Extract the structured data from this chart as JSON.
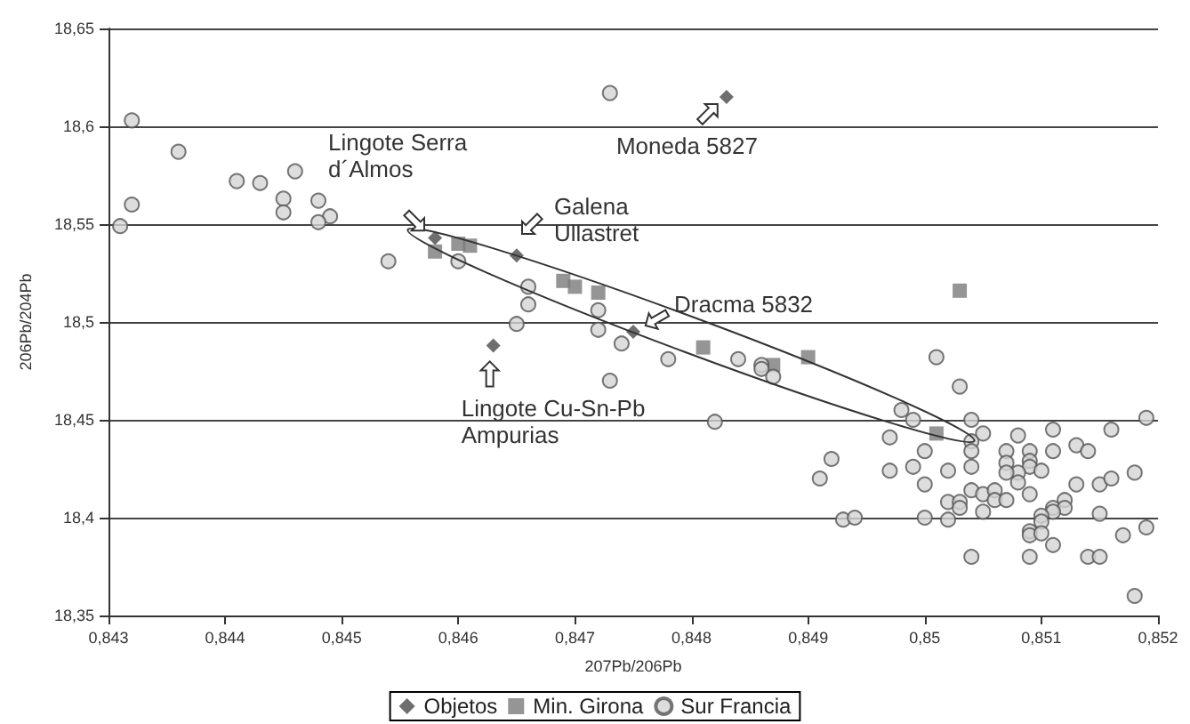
{
  "chart_data": {
    "type": "scatter",
    "xlabel": "207Pb/206Pb",
    "ylabel": "206Pb/204Pb",
    "xlim": [
      0.843,
      0.852
    ],
    "ylim": [
      18.35,
      18.65
    ],
    "xticks": [
      {
        "value": 0.843,
        "label": "0,843"
      },
      {
        "value": 0.844,
        "label": "0,844"
      },
      {
        "value": 0.845,
        "label": "0,845"
      },
      {
        "value": 0.846,
        "label": "0,846"
      },
      {
        "value": 0.847,
        "label": "0,847"
      },
      {
        "value": 0.848,
        "label": "0,848"
      },
      {
        "value": 0.849,
        "label": "0,849"
      },
      {
        "value": 0.85,
        "label": "0,85"
      },
      {
        "value": 0.851,
        "label": "0,851"
      },
      {
        "value": 0.852,
        "label": "0,852"
      }
    ],
    "yticks": [
      {
        "value": 18.35,
        "label": "18,35"
      },
      {
        "value": 18.4,
        "label": "18,4"
      },
      {
        "value": 18.45,
        "label": "18,45"
      },
      {
        "value": 18.5,
        "label": "18,5"
      },
      {
        "value": 18.55,
        "label": "18,55"
      },
      {
        "value": 18.6,
        "label": "18,6"
      },
      {
        "value": 18.65,
        "label": "18,65"
      }
    ],
    "grid": "y",
    "legend": "bottom",
    "series": [
      {
        "name": "Objetos",
        "color": "#4a4a4a",
        "marker": "diamond",
        "x": [
          0.8483,
          0.8458,
          0.8465,
          0.8475,
          0.8463
        ],
        "values": [
          18.615,
          18.543,
          18.534,
          18.495,
          18.488
        ]
      },
      {
        "name": "Min. Girona",
        "color": "#7a7a7a",
        "marker": "square",
        "x": [
          0.8458,
          0.846,
          0.8461,
          0.8469,
          0.847,
          0.8472,
          0.8481,
          0.8487,
          0.849,
          0.8503,
          0.8501
        ],
        "values": [
          18.536,
          18.54,
          18.539,
          18.521,
          18.518,
          18.515,
          18.487,
          18.478,
          18.482,
          18.516,
          18.443
        ]
      },
      {
        "name": "Sur Francia",
        "color": "#d4d4d4",
        "marker": "circle",
        "x": [
          0.8432,
          0.8436,
          0.8432,
          0.8431,
          0.8441,
          0.8443,
          0.8446,
          0.8445,
          0.8445,
          0.8448,
          0.8449,
          0.8448,
          0.8454,
          0.8473,
          0.846,
          0.8466,
          0.8466,
          0.8465,
          0.8472,
          0.8472,
          0.8474,
          0.8478,
          0.8473,
          0.8484,
          0.8486,
          0.8486,
          0.8487,
          0.8482,
          0.8501,
          0.8503,
          0.8498,
          0.8499,
          0.8504,
          0.8519,
          0.8505,
          0.8504,
          0.8497,
          0.85,
          0.8504,
          0.8508,
          0.8511,
          0.8516,
          0.8507,
          0.8511,
          0.8513,
          0.8514,
          0.8509,
          0.8507,
          0.8509,
          0.8509,
          0.851,
          0.8508,
          0.8507,
          0.8504,
          0.8502,
          0.8499,
          0.8497,
          0.8492,
          0.8491,
          0.85,
          0.8504,
          0.8505,
          0.8506,
          0.8506,
          0.8507,
          0.8508,
          0.8509,
          0.8513,
          0.8515,
          0.8516,
          0.8518,
          0.8502,
          0.8503,
          0.8503,
          0.8505,
          0.8512,
          0.8511,
          0.8512,
          0.8511,
          0.8515,
          0.851,
          0.851,
          0.85,
          0.8502,
          0.8493,
          0.8494,
          0.8509,
          0.8509,
          0.851,
          0.8511,
          0.8517,
          0.8519,
          0.8504,
          0.8509,
          0.8514,
          0.8515,
          0.8518
        ],
        "values": [
          18.603,
          18.587,
          18.56,
          18.549,
          18.572,
          18.571,
          18.577,
          18.563,
          18.556,
          18.562,
          18.554,
          18.551,
          18.531,
          18.617,
          18.531,
          18.518,
          18.509,
          18.499,
          18.506,
          18.496,
          18.489,
          18.481,
          18.47,
          18.481,
          18.478,
          18.476,
          18.472,
          18.449,
          18.482,
          18.467,
          18.455,
          18.45,
          18.45,
          18.451,
          18.443,
          18.439,
          18.441,
          18.434,
          18.434,
          18.442,
          18.445,
          18.445,
          18.434,
          18.434,
          18.437,
          18.434,
          18.434,
          18.428,
          18.429,
          18.426,
          18.424,
          18.423,
          18.423,
          18.426,
          18.424,
          18.426,
          18.424,
          18.43,
          18.42,
          18.417,
          18.414,
          18.412,
          18.414,
          18.409,
          18.409,
          18.418,
          18.412,
          18.417,
          18.417,
          18.42,
          18.423,
          18.408,
          18.408,
          18.405,
          18.403,
          18.409,
          18.405,
          18.405,
          18.403,
          18.402,
          18.401,
          18.398,
          18.4,
          18.399,
          18.399,
          18.4,
          18.393,
          18.391,
          18.392,
          18.386,
          18.391,
          18.395,
          18.38,
          18.38,
          18.38,
          18.38,
          18.36
        ]
      }
    ],
    "annotations": [
      {
        "text": "Lingote Serra\nd´Almos",
        "x": 0.8458,
        "y": 18.543
      },
      {
        "text": "Galena\nUllastret",
        "x": 0.8465,
        "y": 18.534
      },
      {
        "text": "Dracma 5832",
        "x": 0.8475,
        "y": 18.495
      },
      {
        "text": "Lingote Cu-Sn-Pb\nAmpurias",
        "x": 0.8463,
        "y": 18.488
      },
      {
        "text": "Moneda 5827",
        "x": 0.8483,
        "y": 18.615
      }
    ]
  }
}
